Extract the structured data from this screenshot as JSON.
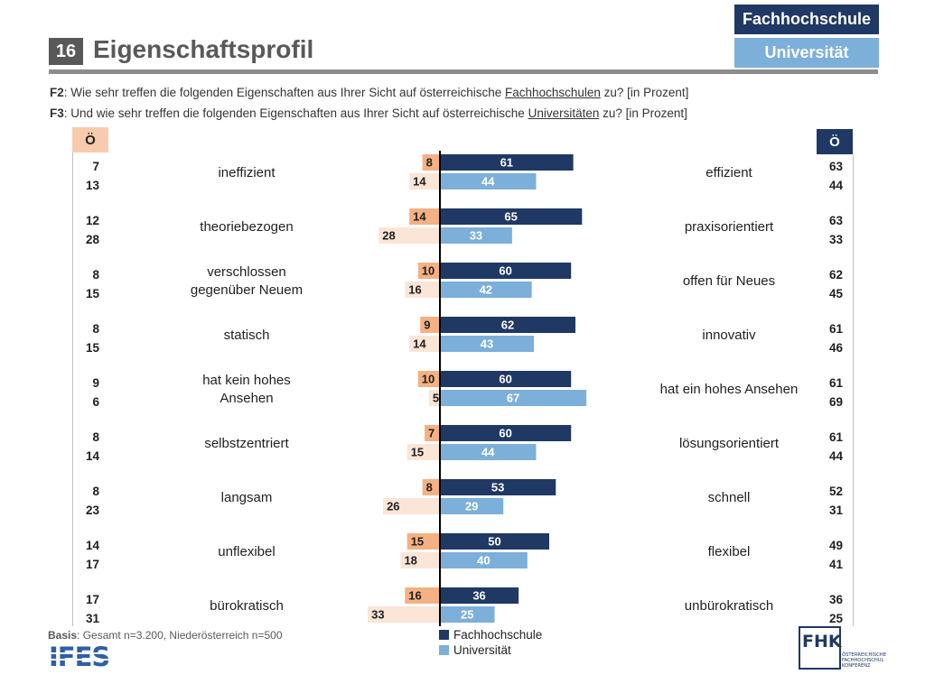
{
  "header": {
    "page_number": "16",
    "title": "Eigenschaftsprofil",
    "legend_fh": "Fachhochschule",
    "legend_uni": "Universität"
  },
  "questions": {
    "q1_prefix": "F2",
    "q1_text_a": ": Wie sehr treffen die folgenden Eigenschaften aus Ihrer Sicht auf österreichische ",
    "q1_underlined": "Fachhochschulen",
    "q1_text_b": " zu? [in Prozent]",
    "q2_prefix": "F3",
    "q2_text_a": ": Und wie sehr treffen die folgenden Eigenschaften aus Ihrer Sicht auf österreichische ",
    "q2_underlined": "Universitäten",
    "q2_text_b": " zu? [in Prozent]"
  },
  "columns": {
    "left_header": "Ö",
    "right_header": "Ö"
  },
  "colors": {
    "fh_positive": "#1f3864",
    "uni_positive": "#7cafd9",
    "fh_negative": "#f4b183",
    "uni_negative": "#fbe5d6",
    "axis": "#000000"
  },
  "chart_data": {
    "type": "bar",
    "subtype": "diverging horizontal bar",
    "series": [
      {
        "name": "Fachhochschule"
      },
      {
        "name": "Universität"
      }
    ],
    "rows": [
      {
        "neg_label": [
          "ineffizient"
        ],
        "pos_label": [
          "effizient"
        ],
        "fh_neg": 8,
        "uni_neg": 14,
        "fh_pos": 61,
        "uni_pos": 44,
        "o_neg_fh": "7",
        "o_neg_uni": "13",
        "o_pos_fh": "63",
        "o_pos_uni": "44"
      },
      {
        "neg_label": [
          "theoriebezogen"
        ],
        "pos_label": [
          "praxisorientiert"
        ],
        "fh_neg": 14,
        "uni_neg": 28,
        "fh_pos": 65,
        "uni_pos": 33,
        "o_neg_fh": "12",
        "o_neg_uni": "28",
        "o_pos_fh": "63",
        "o_pos_uni": "33"
      },
      {
        "neg_label": [
          "verschlossen",
          "gegenüber Neuem"
        ],
        "pos_label": [
          "offen für Neues"
        ],
        "fh_neg": 10,
        "uni_neg": 16,
        "fh_pos": 60,
        "uni_pos": 42,
        "o_neg_fh": "8",
        "o_neg_uni": "15",
        "o_pos_fh": "62",
        "o_pos_uni": "45"
      },
      {
        "neg_label": [
          "statisch"
        ],
        "pos_label": [
          "innovativ"
        ],
        "fh_neg": 9,
        "uni_neg": 14,
        "fh_pos": 62,
        "uni_pos": 43,
        "o_neg_fh": "8",
        "o_neg_uni": "15",
        "o_pos_fh": "61",
        "o_pos_uni": "46"
      },
      {
        "neg_label": [
          "hat kein hohes",
          "Ansehen"
        ],
        "pos_label": [
          "hat ein hohes Ansehen"
        ],
        "fh_neg": 10,
        "uni_neg": 5,
        "fh_pos": 60,
        "uni_pos": 67,
        "o_neg_fh": "9",
        "o_neg_uni": "6",
        "o_pos_fh": "61",
        "o_pos_uni": "69"
      },
      {
        "neg_label": [
          "selbstzentriert"
        ],
        "pos_label": [
          "lösungsorientiert"
        ],
        "fh_neg": 7,
        "uni_neg": 15,
        "fh_pos": 60,
        "uni_pos": 44,
        "o_neg_fh": "8",
        "o_neg_uni": "14",
        "o_pos_fh": "61",
        "o_pos_uni": "44"
      },
      {
        "neg_label": [
          "langsam"
        ],
        "pos_label": [
          "schnell"
        ],
        "fh_neg": 8,
        "uni_neg": 26,
        "fh_pos": 53,
        "uni_pos": 29,
        "o_neg_fh": "8",
        "o_neg_uni": "23",
        "o_pos_fh": "52",
        "o_pos_uni": "31"
      },
      {
        "neg_label": [
          "unflexibel"
        ],
        "pos_label": [
          "flexibel"
        ],
        "fh_neg": 15,
        "uni_neg": 18,
        "fh_pos": 50,
        "uni_pos": 40,
        "o_neg_fh": "14",
        "o_neg_uni": "17",
        "o_pos_fh": "49",
        "o_pos_uni": "41"
      },
      {
        "neg_label": [
          "bürokratisch"
        ],
        "pos_label": [
          "unbürokratisch"
        ],
        "fh_neg": 16,
        "uni_neg": 33,
        "fh_pos": 36,
        "uni_pos": 25,
        "o_neg_fh": "17",
        "o_neg_uni": "31",
        "o_pos_fh": "36",
        "o_pos_uni": "25"
      }
    ]
  },
  "footer": {
    "basis_label": "Basis",
    "basis_text": ": Gesamt n=3.200, Niederösterreich n=500",
    "legend_fh": "Fachhochschule",
    "legend_uni": "Universität"
  },
  "logos": {
    "ifes": "IFES",
    "fhk_main": "FHK",
    "fhk_sub": [
      "ÖSTERREICHISCHE",
      "FACHHOCHSCHUL",
      "KONFERENZ"
    ]
  }
}
